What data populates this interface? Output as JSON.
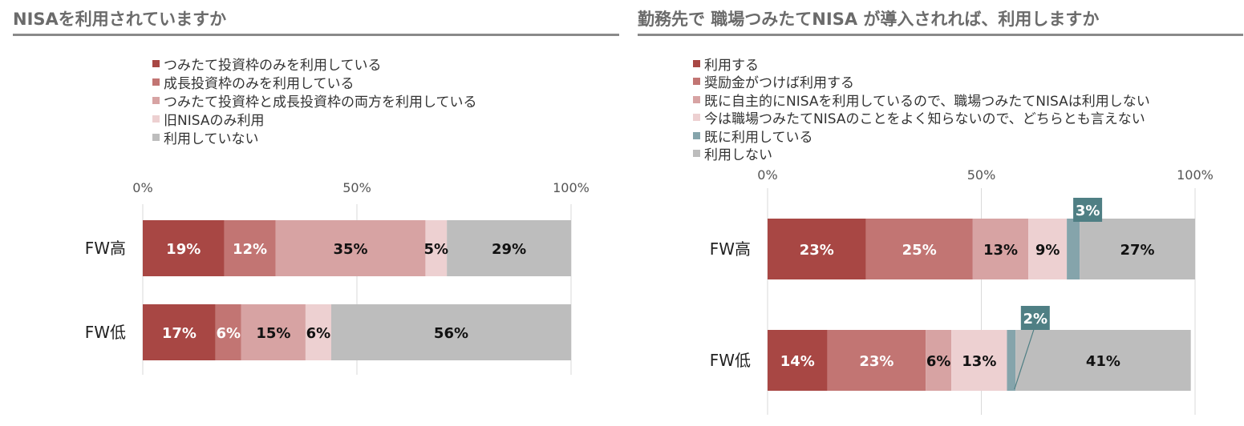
{
  "colors": {
    "c1": "#a84744",
    "c2": "#c27573",
    "c3": "#d7a3a3",
    "c4": "#edd0d1",
    "c5": "#85a4ab",
    "c6": "#bdbdbd",
    "callout": "#4f7f84"
  },
  "left": {
    "title": "NISAを利用されていますか",
    "legend": [
      "つみたて投資枠のみを利用している",
      "成長投資枠のみを利用している",
      "つみたて投資枠と成長投資枠の両方を利用している",
      "旧NISAのみ利用",
      "利用していない"
    ]
  },
  "right": {
    "title": "勤務先で 職場つみたてNISA が導入されれば、利用しますか",
    "legend": [
      "利用する",
      "奨励金がつけば利用する",
      "既に自主的にNISAを利用しているので、職場つみたてNISAは利用しない",
      "今は職場つみたてNISAのことをよく知らないので、どちらとも言えない",
      "既に利用している",
      "利用しない"
    ]
  },
  "chart_data": [
    {
      "type": "bar",
      "stacked": true,
      "orientation": "horizontal",
      "title": "NISAを利用されていますか",
      "categories": [
        "FW高",
        "FW低"
      ],
      "xlim": [
        0,
        100
      ],
      "xticks": [
        "0%",
        "50%",
        "100%"
      ],
      "legend_position": "top",
      "series": [
        {
          "name": "つみたて投資枠のみを利用している",
          "values": [
            19,
            17
          ],
          "labels": [
            "19%",
            "17%"
          ]
        },
        {
          "name": "成長投資枠のみを利用している",
          "values": [
            12,
            6
          ],
          "labels": [
            "12%",
            "6%"
          ]
        },
        {
          "name": "つみたて投資枠と成長投資枠の両方を利用している",
          "values": [
            35,
            15
          ],
          "labels": [
            "35%",
            "15%"
          ]
        },
        {
          "name": "旧NISAのみ利用",
          "values": [
            5,
            6
          ],
          "labels": [
            "5%",
            "6%"
          ]
        },
        {
          "name": "利用していない",
          "values": [
            29,
            56
          ],
          "labels": [
            "29%",
            "56%"
          ]
        }
      ]
    },
    {
      "type": "bar",
      "stacked": true,
      "orientation": "horizontal",
      "title": "勤務先で 職場つみたてNISA が導入されれば、利用しますか",
      "categories": [
        "FW高",
        "FW低"
      ],
      "xlim": [
        0,
        100
      ],
      "xticks": [
        "0%",
        "50%",
        "100%"
      ],
      "legend_position": "top",
      "series": [
        {
          "name": "利用する",
          "values": [
            23,
            14
          ],
          "labels": [
            "23%",
            "14%"
          ]
        },
        {
          "name": "奨励金がつけば利用する",
          "values": [
            25,
            23
          ],
          "labels": [
            "25%",
            "23%"
          ]
        },
        {
          "name": "既に自主的にNISAを利用しているので、職場つみたてNISAは利用しない",
          "values": [
            13,
            6
          ],
          "labels": [
            "13%",
            "6%"
          ]
        },
        {
          "name": "今は職場つみたてNISAのことをよく知らないので、どちらとも言えない",
          "values": [
            9,
            13
          ],
          "labels": [
            "9%",
            "13%"
          ]
        },
        {
          "name": "既に利用している",
          "values": [
            3,
            2
          ],
          "labels": [
            "3%",
            "2%"
          ]
        },
        {
          "name": "利用しない",
          "values": [
            27,
            41
          ],
          "labels": [
            "27%",
            "41%"
          ]
        }
      ]
    }
  ]
}
